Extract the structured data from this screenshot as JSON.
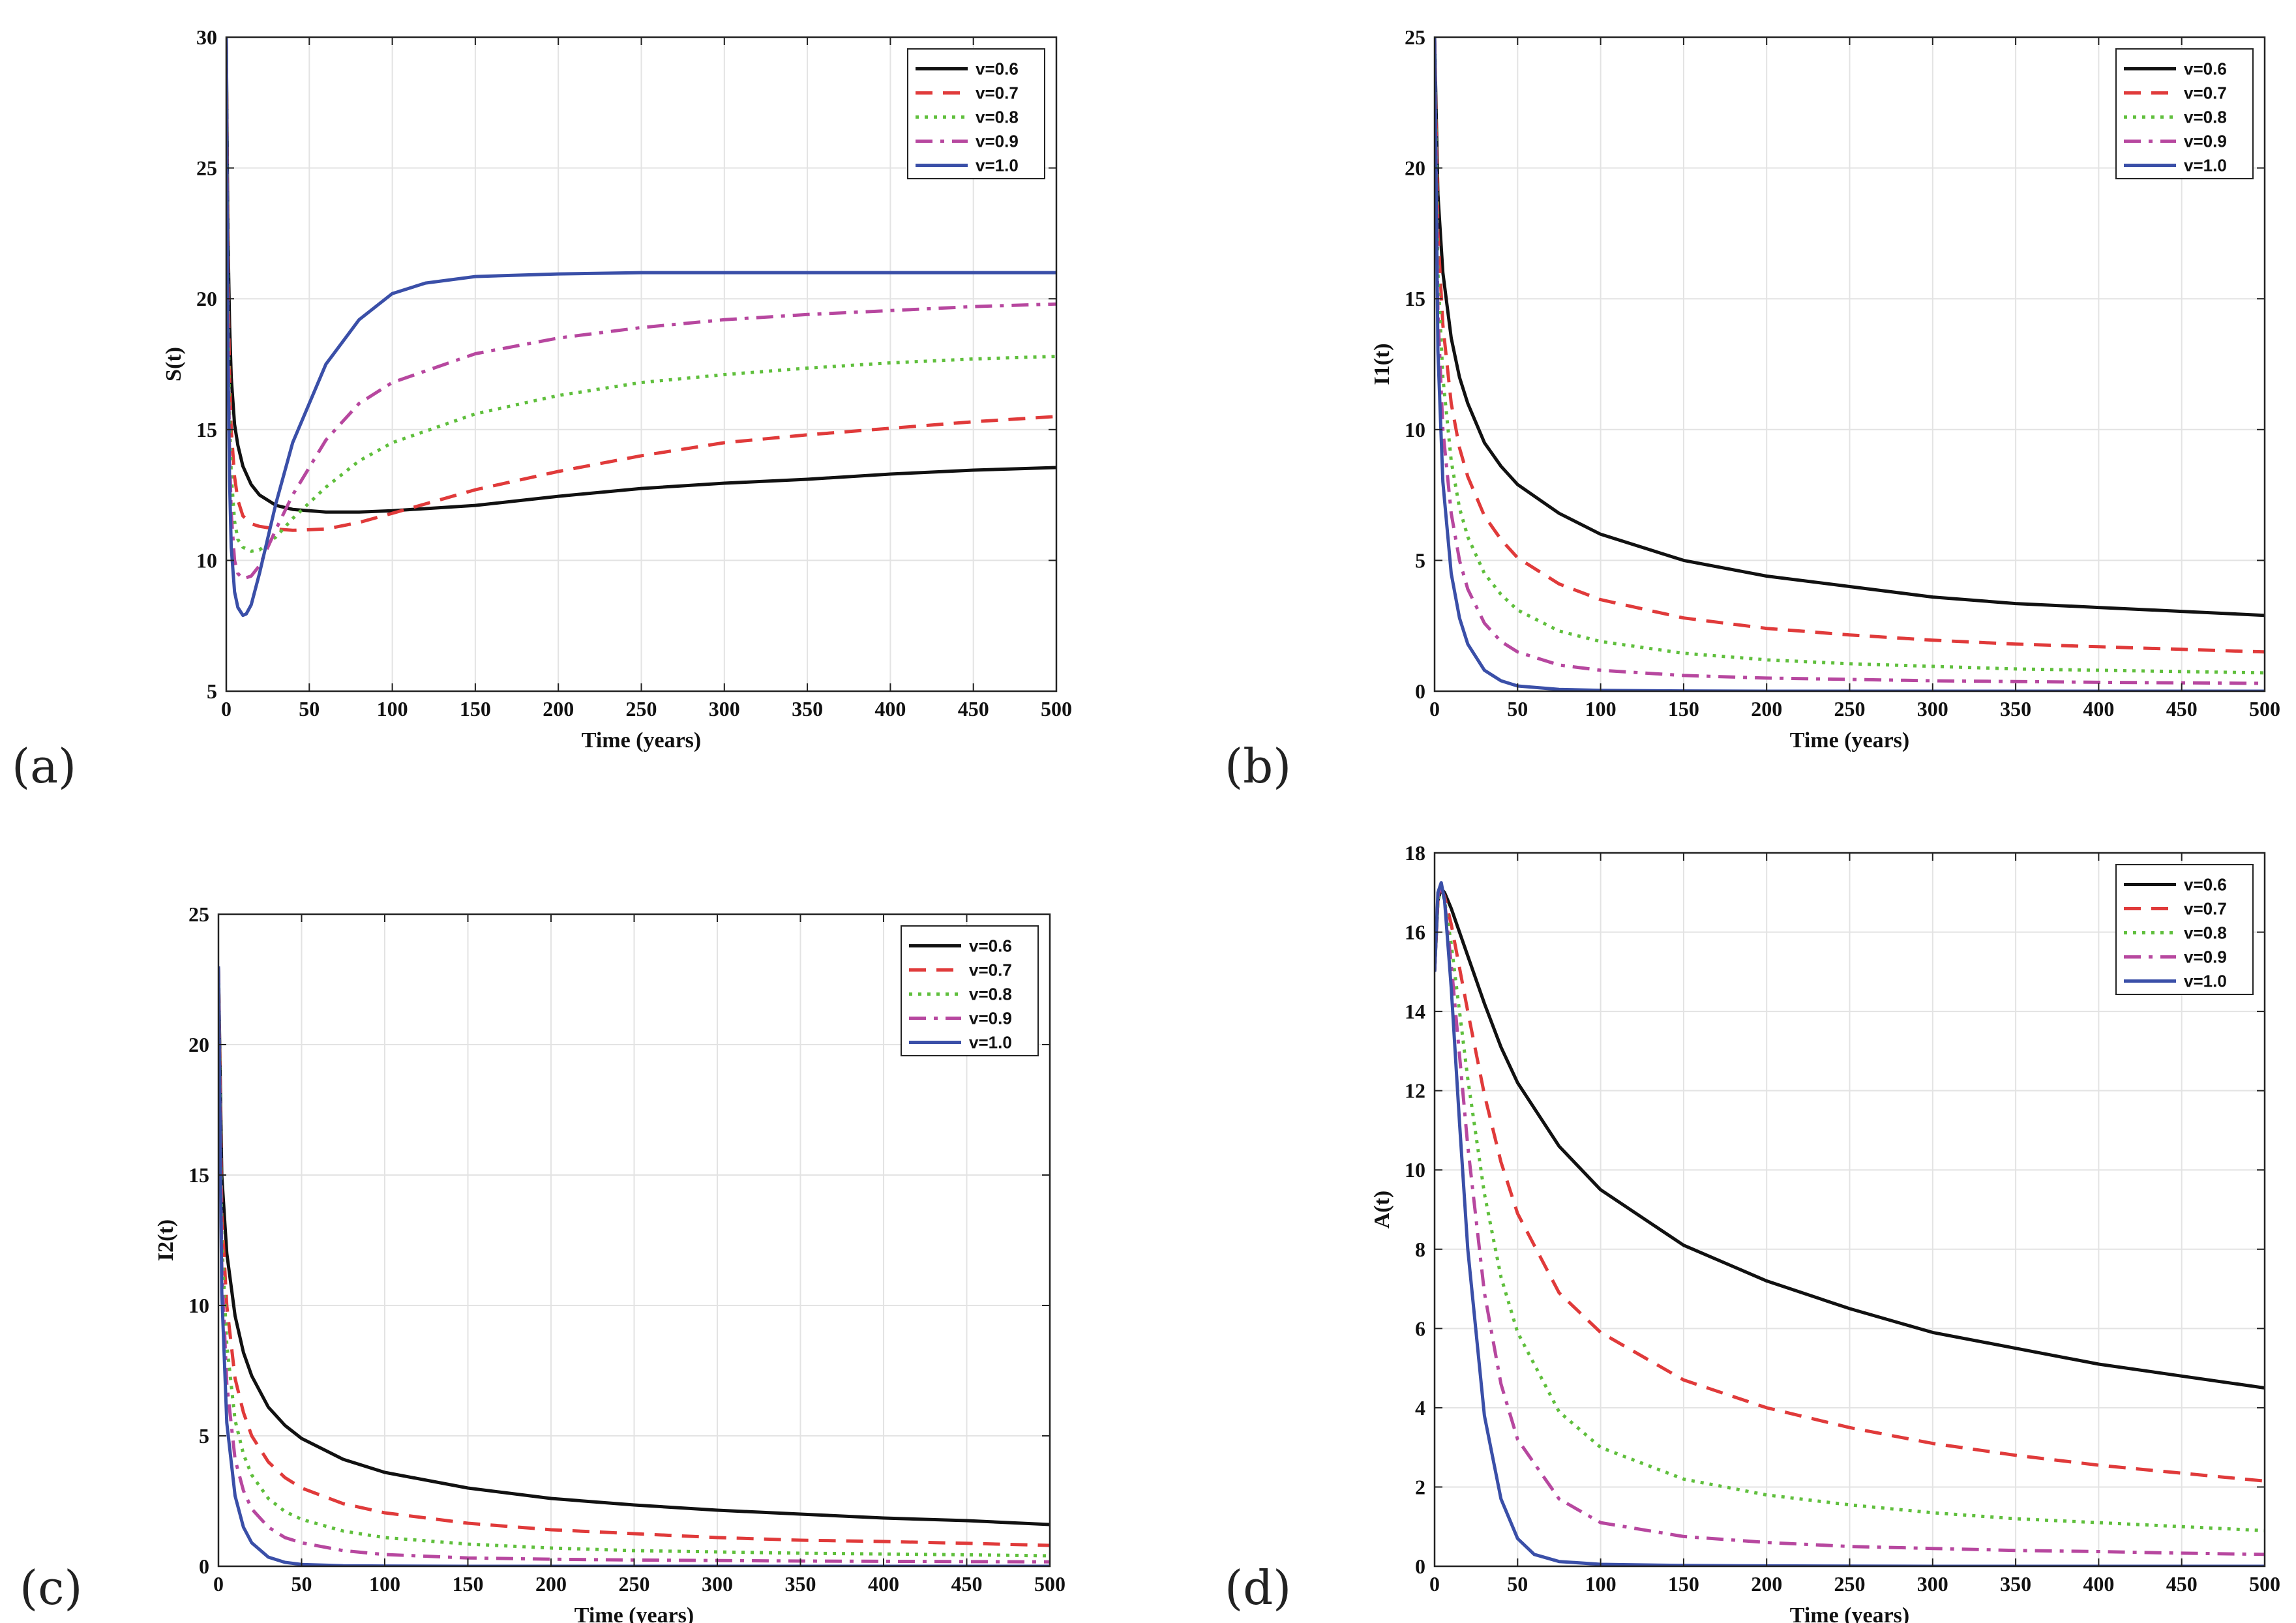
{
  "chart_data": [
    {
      "type": "line",
      "panel_label": "(a)",
      "xlabel": "Time (years)",
      "ylabel": "S(t)",
      "xlim": [
        0,
        500
      ],
      "ylim": [
        5,
        30
      ],
      "xticks": [
        0,
        50,
        100,
        150,
        200,
        250,
        300,
        350,
        400,
        450,
        500
      ],
      "yticks": [
        5,
        10,
        15,
        20,
        25,
        30
      ],
      "grid": true,
      "legend_position": "top-right",
      "series": [
        {
          "name": "v=0.6",
          "color": "#111111",
          "dash": "solid",
          "x": [
            0,
            1,
            2,
            3,
            5,
            7,
            10,
            15,
            20,
            30,
            40,
            60,
            80,
            100,
            150,
            200,
            250,
            300,
            350,
            400,
            450,
            500
          ],
          "y": [
            30,
            22.5,
            19,
            17,
            15.2,
            14.4,
            13.6,
            12.9,
            12.5,
            12.1,
            11.95,
            11.85,
            11.85,
            11.9,
            12.1,
            12.45,
            12.75,
            12.95,
            13.1,
            13.3,
            13.45,
            13.55
          ]
        },
        {
          "name": "v=0.7",
          "color": "#e03a3a",
          "dash": "dashed",
          "x": [
            0,
            1,
            2,
            3,
            5,
            7,
            10,
            15,
            20,
            30,
            40,
            60,
            80,
            100,
            150,
            200,
            250,
            300,
            350,
            400,
            450,
            500
          ],
          "y": [
            30,
            21,
            17,
            15,
            13.2,
            12.3,
            11.7,
            11.4,
            11.3,
            11.2,
            11.15,
            11.2,
            11.45,
            11.8,
            12.7,
            13.4,
            14,
            14.5,
            14.8,
            15.05,
            15.3,
            15.5
          ]
        },
        {
          "name": "v=0.8",
          "color": "#5fbf3c",
          "dash": "dotted",
          "x": [
            0,
            1,
            2,
            3,
            5,
            7,
            10,
            15,
            20,
            30,
            40,
            60,
            80,
            100,
            150,
            200,
            250,
            300,
            350,
            400,
            450,
            500
          ],
          "y": [
            30,
            20,
            15.5,
            13.3,
            11.5,
            10.8,
            10.5,
            10.35,
            10.4,
            10.9,
            11.6,
            12.8,
            13.8,
            14.5,
            15.6,
            16.3,
            16.8,
            17.1,
            17.35,
            17.55,
            17.7,
            17.8
          ]
        },
        {
          "name": "v=0.9",
          "color": "#b7479f",
          "dash": "dashdot",
          "x": [
            0,
            1,
            2,
            3,
            5,
            7,
            10,
            15,
            20,
            30,
            40,
            60,
            80,
            100,
            150,
            200,
            250,
            300,
            350,
            400,
            450,
            500
          ],
          "y": [
            30,
            19,
            14,
            11.8,
            10,
            9.5,
            9.3,
            9.4,
            9.8,
            11.2,
            12.5,
            14.6,
            16,
            16.8,
            17.9,
            18.5,
            18.9,
            19.2,
            19.4,
            19.55,
            19.7,
            19.8
          ]
        },
        {
          "name": "v=1.0",
          "color": "#3a4fa8",
          "dash": "solid",
          "x": [
            0,
            1,
            2,
            3,
            5,
            7,
            10,
            12,
            15,
            20,
            30,
            40,
            60,
            80,
            100,
            120,
            150,
            200,
            250,
            300,
            400,
            500
          ],
          "y": [
            30,
            18,
            13,
            10.5,
            8.8,
            8.2,
            7.9,
            7.95,
            8.3,
            9.5,
            12.2,
            14.5,
            17.5,
            19.2,
            20.2,
            20.6,
            20.85,
            20.95,
            21,
            21,
            21,
            21
          ]
        }
      ],
      "legend": [
        "v=0.6",
        "v=0.7",
        "v=0.8",
        "v=0.9",
        "v=1.0"
      ]
    },
    {
      "type": "line",
      "panel_label": "(b)",
      "xlabel": "Time (years)",
      "ylabel": "I1(t)",
      "xlim": [
        0,
        500
      ],
      "ylim": [
        0,
        25
      ],
      "xticks": [
        0,
        50,
        100,
        150,
        200,
        250,
        300,
        350,
        400,
        450,
        500
      ],
      "yticks": [
        0,
        5,
        10,
        15,
        20,
        25
      ],
      "grid": true,
      "legend_position": "top-right",
      "series": [
        {
          "name": "v=0.6",
          "color": "#111111",
          "dash": "solid",
          "x": [
            0,
            2,
            5,
            10,
            15,
            20,
            30,
            40,
            50,
            75,
            100,
            150,
            200,
            250,
            300,
            350,
            400,
            450,
            500
          ],
          "y": [
            25,
            19,
            16,
            13.5,
            12,
            11,
            9.5,
            8.6,
            7.9,
            6.8,
            6,
            5,
            4.4,
            4,
            3.6,
            3.35,
            3.2,
            3.05,
            2.9
          ]
        },
        {
          "name": "v=0.7",
          "color": "#e03a3a",
          "dash": "dashed",
          "x": [
            0,
            2,
            5,
            10,
            15,
            20,
            30,
            40,
            50,
            75,
            100,
            150,
            200,
            250,
            300,
            350,
            400,
            450,
            500
          ],
          "y": [
            25,
            17.5,
            14,
            11,
            9.3,
            8.2,
            6.7,
            5.8,
            5.1,
            4.1,
            3.5,
            2.8,
            2.4,
            2.15,
            1.95,
            1.8,
            1.7,
            1.6,
            1.5
          ]
        },
        {
          "name": "v=0.8",
          "color": "#5fbf3c",
          "dash": "dotted",
          "x": [
            0,
            2,
            5,
            10,
            15,
            20,
            30,
            40,
            50,
            75,
            100,
            150,
            200,
            250,
            300,
            350,
            400,
            450,
            500
          ],
          "y": [
            25,
            16,
            12,
            8.8,
            7,
            5.9,
            4.5,
            3.7,
            3.1,
            2.3,
            1.9,
            1.45,
            1.2,
            1.05,
            0.95,
            0.85,
            0.8,
            0.75,
            0.7
          ]
        },
        {
          "name": "v=0.9",
          "color": "#b7479f",
          "dash": "dashdot",
          "x": [
            0,
            2,
            5,
            10,
            15,
            20,
            30,
            40,
            50,
            75,
            100,
            150,
            200,
            250,
            300,
            350,
            400,
            450,
            500
          ],
          "y": [
            25,
            14.5,
            10,
            6.8,
            5,
            3.9,
            2.6,
            1.9,
            1.5,
            1,
            0.8,
            0.6,
            0.5,
            0.45,
            0.4,
            0.37,
            0.34,
            0.32,
            0.3
          ]
        },
        {
          "name": "v=1.0",
          "color": "#3a4fa8",
          "dash": "solid",
          "x": [
            0,
            2,
            5,
            10,
            15,
            20,
            30,
            40,
            50,
            75,
            100,
            150,
            200,
            250,
            300,
            400,
            500
          ],
          "y": [
            25,
            13,
            8,
            4.5,
            2.8,
            1.8,
            0.8,
            0.4,
            0.2,
            0.07,
            0.03,
            0.01,
            0,
            0,
            0,
            0,
            0
          ]
        }
      ],
      "legend": [
        "v=0.6",
        "v=0.7",
        "v=0.8",
        "v=0.9",
        "v=1.0"
      ]
    },
    {
      "type": "line",
      "panel_label": "(c)",
      "xlabel": "Time (years)",
      "ylabel": "I2(t)",
      "xlim": [
        0,
        500
      ],
      "ylim": [
        0,
        25
      ],
      "xticks": [
        0,
        50,
        100,
        150,
        200,
        250,
        300,
        350,
        400,
        450,
        500
      ],
      "yticks": [
        0,
        5,
        10,
        15,
        20,
        25
      ],
      "grid": true,
      "legend_position": "top-right",
      "series": [
        {
          "name": "v=0.6",
          "color": "#111111",
          "dash": "solid",
          "x": [
            0,
            2,
            5,
            10,
            15,
            20,
            30,
            40,
            50,
            75,
            100,
            150,
            200,
            250,
            300,
            350,
            400,
            450,
            500
          ],
          "y": [
            23,
            15,
            12,
            9.6,
            8.2,
            7.3,
            6.1,
            5.4,
            4.9,
            4.1,
            3.6,
            3,
            2.6,
            2.35,
            2.15,
            2,
            1.85,
            1.75,
            1.6
          ]
        },
        {
          "name": "v=0.7",
          "color": "#e03a3a",
          "dash": "dashed",
          "x": [
            0,
            2,
            5,
            10,
            15,
            20,
            30,
            40,
            50,
            75,
            100,
            150,
            200,
            250,
            300,
            350,
            400,
            450,
            500
          ],
          "y": [
            23,
            13.5,
            10,
            7.2,
            5.9,
            5,
            4,
            3.4,
            3,
            2.4,
            2.05,
            1.65,
            1.4,
            1.25,
            1.1,
            1,
            0.95,
            0.88,
            0.8
          ]
        },
        {
          "name": "v=0.8",
          "color": "#5fbf3c",
          "dash": "dotted",
          "x": [
            0,
            2,
            5,
            10,
            15,
            20,
            30,
            40,
            50,
            75,
            100,
            150,
            200,
            250,
            300,
            350,
            400,
            450,
            500
          ],
          "y": [
            23,
            12.5,
            8.5,
            5.6,
            4.3,
            3.5,
            2.6,
            2.1,
            1.8,
            1.35,
            1.1,
            0.85,
            0.7,
            0.6,
            0.55,
            0.5,
            0.47,
            0.44,
            0.4
          ]
        },
        {
          "name": "v=0.9",
          "color": "#b7479f",
          "dash": "dashdot",
          "x": [
            0,
            2,
            5,
            10,
            15,
            20,
            30,
            40,
            50,
            75,
            100,
            150,
            200,
            250,
            300,
            350,
            400,
            450,
            500
          ],
          "y": [
            23,
            11.5,
            7,
            4.1,
            2.9,
            2.2,
            1.5,
            1.1,
            0.9,
            0.6,
            0.45,
            0.32,
            0.27,
            0.24,
            0.22,
            0.2,
            0.19,
            0.18,
            0.17
          ]
        },
        {
          "name": "v=1.0",
          "color": "#3a4fa8",
          "dash": "solid",
          "x": [
            0,
            2,
            5,
            10,
            15,
            20,
            30,
            40,
            50,
            75,
            100,
            150,
            200,
            300,
            400,
            500
          ],
          "y": [
            23,
            10.5,
            5.5,
            2.7,
            1.5,
            0.9,
            0.35,
            0.15,
            0.07,
            0.02,
            0.01,
            0,
            0,
            0,
            0,
            0
          ]
        }
      ],
      "legend": [
        "v=0.6",
        "v=0.7",
        "v=0.8",
        "v=0.9",
        "v=1.0"
      ]
    },
    {
      "type": "line",
      "panel_label": "(d)",
      "xlabel": "Time (years)",
      "ylabel": "A(t)",
      "xlim": [
        0,
        500
      ],
      "ylim": [
        0,
        18
      ],
      "xticks": [
        0,
        50,
        100,
        150,
        200,
        250,
        300,
        350,
        400,
        450,
        500
      ],
      "yticks": [
        0,
        2,
        4,
        6,
        8,
        10,
        12,
        14,
        16,
        18
      ],
      "grid": true,
      "legend_position": "top-right",
      "series": [
        {
          "name": "v=0.6",
          "color": "#111111",
          "dash": "solid",
          "x": [
            0,
            2,
            4,
            6,
            10,
            20,
            30,
            40,
            50,
            75,
            100,
            150,
            200,
            250,
            300,
            350,
            400,
            450,
            500
          ],
          "y": [
            15,
            16.8,
            17.1,
            17,
            16.6,
            15.4,
            14.2,
            13.1,
            12.2,
            10.6,
            9.5,
            8.1,
            7.2,
            6.5,
            5.9,
            5.5,
            5.1,
            4.8,
            4.5
          ]
        },
        {
          "name": "v=0.7",
          "color": "#e03a3a",
          "dash": "dashed",
          "x": [
            0,
            2,
            4,
            6,
            10,
            20,
            30,
            40,
            50,
            75,
            100,
            150,
            200,
            250,
            300,
            350,
            400,
            450,
            500
          ],
          "y": [
            15,
            16.8,
            17.1,
            16.9,
            16.2,
            14,
            11.9,
            10.2,
            8.9,
            6.9,
            5.9,
            4.7,
            4,
            3.5,
            3.1,
            2.8,
            2.55,
            2.35,
            2.15
          ]
        },
        {
          "name": "v=0.8",
          "color": "#5fbf3c",
          "dash": "dotted",
          "x": [
            0,
            2,
            4,
            6,
            10,
            20,
            30,
            40,
            50,
            75,
            100,
            150,
            200,
            250,
            300,
            350,
            400,
            450,
            500
          ],
          "y": [
            15,
            16.8,
            17.1,
            16.8,
            15.7,
            12.3,
            9.4,
            7.3,
            5.9,
            3.9,
            3,
            2.2,
            1.8,
            1.55,
            1.35,
            1.2,
            1.1,
            1,
            0.9
          ]
        },
        {
          "name": "v=0.9",
          "color": "#b7479f",
          "dash": "dashdot",
          "x": [
            0,
            2,
            4,
            6,
            10,
            20,
            30,
            40,
            50,
            75,
            100,
            150,
            200,
            250,
            300,
            350,
            400,
            450,
            500
          ],
          "y": [
            15,
            16.9,
            17.2,
            16.8,
            15.2,
            10.6,
            6.9,
            4.6,
            3.2,
            1.7,
            1.1,
            0.75,
            0.6,
            0.5,
            0.45,
            0.4,
            0.37,
            0.33,
            0.3
          ]
        },
        {
          "name": "v=1.0",
          "color": "#3a4fa8",
          "dash": "solid",
          "x": [
            0,
            2,
            4,
            6,
            10,
            15,
            20,
            30,
            40,
            50,
            60,
            75,
            100,
            150,
            200,
            300,
            400,
            500
          ],
          "y": [
            15,
            17,
            17.25,
            16.8,
            14.6,
            11.2,
            8,
            3.8,
            1.7,
            0.7,
            0.3,
            0.12,
            0.05,
            0.02,
            0.01,
            0,
            0,
            0
          ]
        }
      ],
      "legend": [
        "v=0.6",
        "v=0.7",
        "v=0.8",
        "v=0.9",
        "v=1.0"
      ]
    }
  ]
}
